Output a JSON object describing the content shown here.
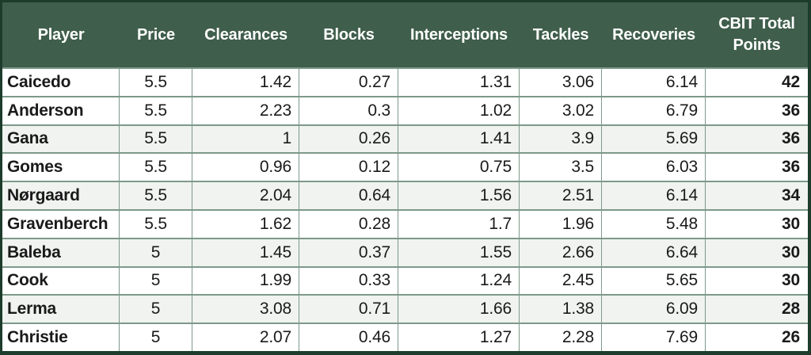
{
  "colors": {
    "header_bg": "#3f5e4b",
    "header_text": "#ffffff",
    "outer_border": "#1e3c2b",
    "grid_line": "#7d998a",
    "stripe_bg": "#f0f3f0",
    "text": "#1a1a1a"
  },
  "table": {
    "headers": [
      "Player",
      "Price",
      "Clearances",
      "Blocks",
      "Interceptions",
      "Tackles",
      "Recoveries",
      "CBIT Total Points"
    ],
    "rows": [
      [
        "Caicedo",
        "5.5",
        "1.42",
        "0.27",
        "1.31",
        "3.06",
        "6.14",
        "42"
      ],
      [
        "Anderson",
        "5.5",
        "2.23",
        "0.3",
        "1.02",
        "3.02",
        "6.79",
        "36"
      ],
      [
        "Gana",
        "5.5",
        "1",
        "0.26",
        "1.41",
        "3.9",
        "5.69",
        "36"
      ],
      [
        "Gomes",
        "5.5",
        "0.96",
        "0.12",
        "0.75",
        "3.5",
        "6.03",
        "36"
      ],
      [
        "Nørgaard",
        "5.5",
        "2.04",
        "0.64",
        "1.56",
        "2.51",
        "6.14",
        "34"
      ],
      [
        "Gravenberch",
        "5.5",
        "1.62",
        "0.28",
        "1.7",
        "1.96",
        "5.48",
        "30"
      ],
      [
        "Baleba",
        "5",
        "1.45",
        "0.37",
        "1.55",
        "2.66",
        "6.64",
        "30"
      ],
      [
        "Cook",
        "5",
        "1.99",
        "0.33",
        "1.24",
        "2.45",
        "5.65",
        "30"
      ],
      [
        "Lerma",
        "5",
        "3.08",
        "0.71",
        "1.66",
        "1.38",
        "6.09",
        "28"
      ],
      [
        "Christie",
        "5",
        "2.07",
        "0.46",
        "1.27",
        "2.28",
        "7.69",
        "26"
      ]
    ],
    "striped_row_numbers": [
      3,
      5,
      7,
      9
    ]
  },
  "chart_data": {
    "type": "table",
    "columns": [
      "Player",
      "Price",
      "Clearances",
      "Blocks",
      "Interceptions",
      "Tackles",
      "Recoveries",
      "CBIT Total Points"
    ],
    "rows": [
      {
        "player": "Caicedo",
        "price": 5.5,
        "clearances": 1.42,
        "blocks": 0.27,
        "interceptions": 1.31,
        "tackles": 3.06,
        "recoveries": 6.14,
        "cbit_total_points": 42
      },
      {
        "player": "Anderson",
        "price": 5.5,
        "clearances": 2.23,
        "blocks": 0.3,
        "interceptions": 1.02,
        "tackles": 3.02,
        "recoveries": 6.79,
        "cbit_total_points": 36
      },
      {
        "player": "Gana",
        "price": 5.5,
        "clearances": 1,
        "blocks": 0.26,
        "interceptions": 1.41,
        "tackles": 3.9,
        "recoveries": 5.69,
        "cbit_total_points": 36
      },
      {
        "player": "Gomes",
        "price": 5.5,
        "clearances": 0.96,
        "blocks": 0.12,
        "interceptions": 0.75,
        "tackles": 3.5,
        "recoveries": 6.03,
        "cbit_total_points": 36
      },
      {
        "player": "Nørgaard",
        "price": 5.5,
        "clearances": 2.04,
        "blocks": 0.64,
        "interceptions": 1.56,
        "tackles": 2.51,
        "recoveries": 6.14,
        "cbit_total_points": 34
      },
      {
        "player": "Gravenberch",
        "price": 5.5,
        "clearances": 1.62,
        "blocks": 0.28,
        "interceptions": 1.7,
        "tackles": 1.96,
        "recoveries": 5.48,
        "cbit_total_points": 30
      },
      {
        "player": "Baleba",
        "price": 5,
        "clearances": 1.45,
        "blocks": 0.37,
        "interceptions": 1.55,
        "tackles": 2.66,
        "recoveries": 6.64,
        "cbit_total_points": 30
      },
      {
        "player": "Cook",
        "price": 5,
        "clearances": 1.99,
        "blocks": 0.33,
        "interceptions": 1.24,
        "tackles": 2.45,
        "recoveries": 5.65,
        "cbit_total_points": 30
      },
      {
        "player": "Lerma",
        "price": 5,
        "clearances": 3.08,
        "blocks": 0.71,
        "interceptions": 1.66,
        "tackles": 1.38,
        "recoveries": 6.09,
        "cbit_total_points": 28
      },
      {
        "player": "Christie",
        "price": 5,
        "clearances": 2.07,
        "blocks": 0.46,
        "interceptions": 1.27,
        "tackles": 2.28,
        "recoveries": 7.69,
        "cbit_total_points": 26
      }
    ]
  }
}
